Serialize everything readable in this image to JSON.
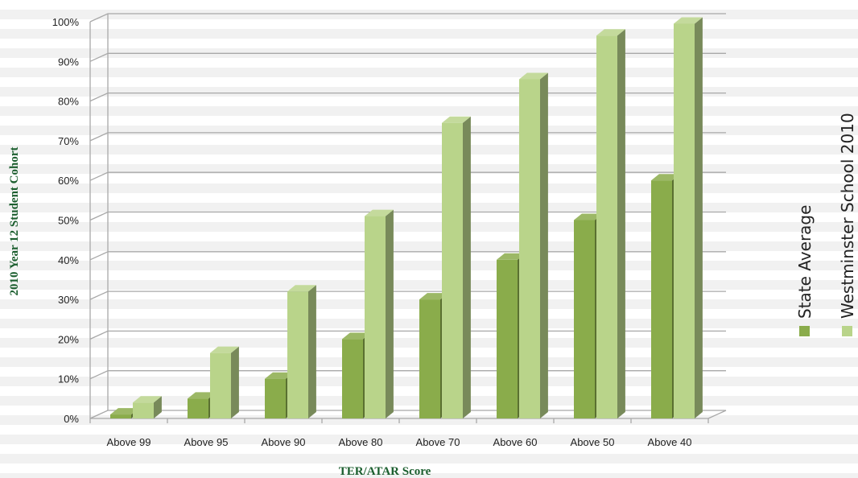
{
  "chart_data": {
    "type": "bar",
    "categories": [
      "Above 99",
      "Above 95",
      "Above 90",
      "Above 80",
      "Above 70",
      "Above 60",
      "Above 50",
      "Above 40"
    ],
    "series": [
      {
        "name": "State Average",
        "values": [
          1,
          5,
          10,
          20,
          30,
          40,
          50,
          60
        ],
        "color": "#8aac4b"
      },
      {
        "name": "Westminster School 2010",
        "values": [
          4,
          16.5,
          32,
          51,
          74.5,
          85.5,
          96.5,
          99.5
        ],
        "color": "#b9d48a"
      }
    ],
    "yticks": [
      "0%",
      "10%",
      "20%",
      "30%",
      "40%",
      "50%",
      "60%",
      "70%",
      "80%",
      "90%",
      "100%"
    ],
    "ylim": [
      0,
      100
    ],
    "xlabel": "TER/ATAR Score",
    "ylabel": "2010 Year 12 Student Cohort",
    "grid": true,
    "legend_position": "right, rotated vertical"
  }
}
